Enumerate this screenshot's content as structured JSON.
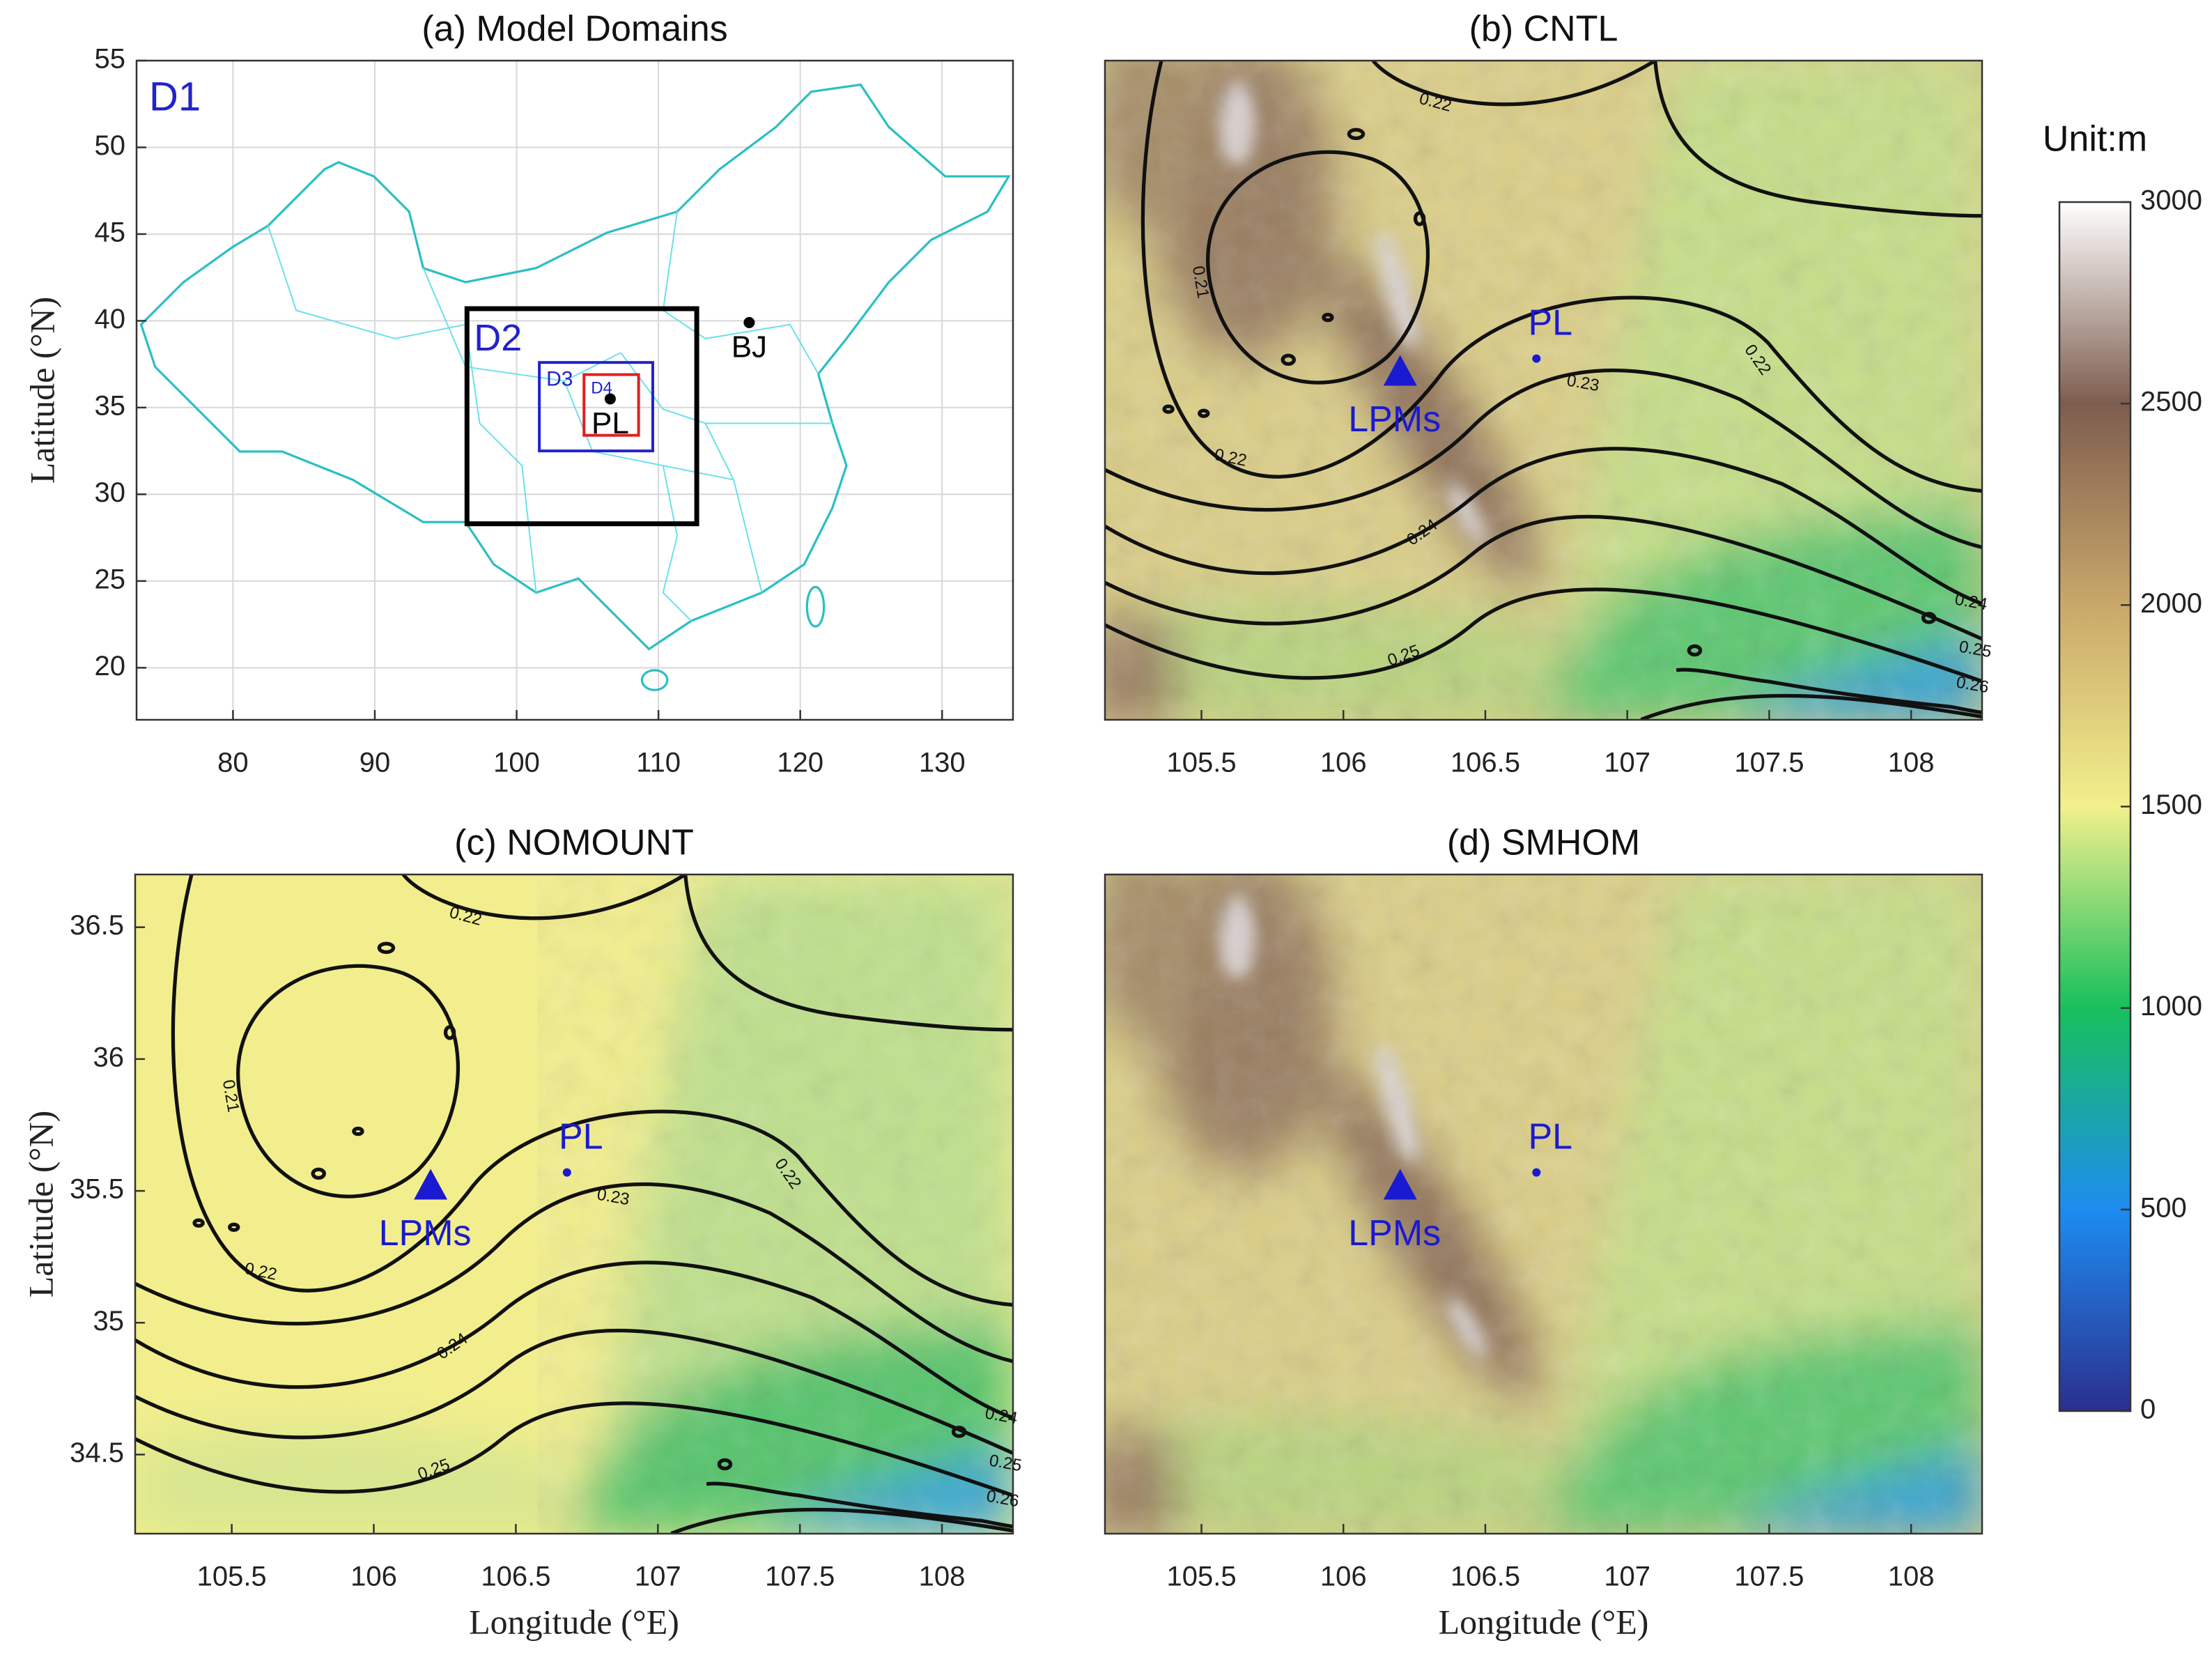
{
  "panels": [
    {
      "title": "(a) Model Domains",
      "ylabel": "Latitude (°N)",
      "xlim": [
        73.2,
        135
      ],
      "ylim": [
        17,
        55
      ],
      "xticks": [
        80,
        90,
        100,
        110,
        120,
        130
      ],
      "yticks": [
        20,
        25,
        30,
        35,
        40,
        45,
        50,
        55
      ],
      "grid": true,
      "domain_label": "D1",
      "domains": [
        {
          "label": "D2",
          "lon": [
            96.5,
            112.7
          ],
          "lat": [
            28.3,
            40.7
          ],
          "color": "#000000"
        },
        {
          "label": "D3",
          "lon": [
            101.6,
            109.6
          ],
          "lat": [
            32.5,
            37.6
          ],
          "color": "#2222cc"
        },
        {
          "label": "D4",
          "lon": [
            104.75,
            108.6
          ],
          "lat": [
            33.4,
            36.9
          ],
          "color": "#e02020"
        }
      ],
      "points": [
        {
          "label": "BJ",
          "lon": 116.4,
          "lat": 39.9,
          "marker": "dot",
          "color": "#000000"
        },
        {
          "label": "PL",
          "lon": 106.6,
          "lat": 35.5,
          "marker": "dot",
          "color": "#000000"
        }
      ]
    },
    {
      "title": "(b) CNTL",
      "terrain": "full",
      "xlim": [
        105.16,
        108.25
      ],
      "ylim": [
        34.2,
        36.7
      ],
      "xticks": [
        105.5,
        106,
        106.5,
        107,
        107.5,
        108
      ],
      "points": [
        {
          "label": "PL",
          "lon": 106.68,
          "lat": 35.57,
          "marker": "dot",
          "color": "#1a1ad0"
        },
        {
          "label": "LPMs",
          "lon": 106.2,
          "lat": 35.52,
          "marker": "triangle",
          "color": "#1a1ad0"
        }
      ],
      "contour_labels": [
        0.22,
        0.21,
        0.22,
        0.23,
        0.22,
        0.24,
        0.25,
        0.24,
        0.25,
        0.26
      ]
    },
    {
      "title": "(c) NOMOUNT",
      "terrain": "flat",
      "xlabel": "Longitude (°E)",
      "ylabel": "Latitude (°N)",
      "xlim": [
        105.16,
        108.25
      ],
      "ylim": [
        34.2,
        36.7
      ],
      "xticks": [
        105.5,
        106,
        106.5,
        107,
        107.5,
        108
      ],
      "yticks": [
        34.5,
        35,
        35.5,
        36,
        36.5
      ],
      "points": [
        {
          "label": "PL",
          "lon": 106.68,
          "lat": 35.57,
          "marker": "dot",
          "color": "#1a1ad0"
        },
        {
          "label": "LPMs",
          "lon": 106.2,
          "lat": 35.52,
          "marker": "triangle",
          "color": "#1a1ad0"
        }
      ],
      "contour_labels": [
        0.22,
        0.21,
        0.22,
        0.23,
        0.22,
        0.24,
        0.25,
        0.24,
        0.25,
        0.26
      ]
    },
    {
      "title": "(d) SMHOM",
      "terrain": "full",
      "xlabel": "Longitude (°E)",
      "xlim": [
        105.16,
        108.25
      ],
      "ylim": [
        34.2,
        36.7
      ],
      "xticks": [
        105.5,
        106,
        106.5,
        107,
        107.5,
        108
      ],
      "points": [
        {
          "label": "PL",
          "lon": 106.68,
          "lat": 35.57,
          "marker": "dot",
          "color": "#1a1ad0"
        },
        {
          "label": "LPMs",
          "lon": 106.2,
          "lat": 35.52,
          "marker": "triangle",
          "color": "#1a1ad0"
        }
      ]
    }
  ],
  "colorbar": {
    "title": "Unit:m",
    "lim": [
      0,
      3000
    ],
    "ticks": [
      0,
      500,
      1000,
      1500,
      2000,
      2500,
      3000
    ],
    "colors": [
      "#2b2f8f",
      "#1e8cf0",
      "#17c05c",
      "#f2f08c",
      "#c9a86a",
      "#7e5d4f",
      "#ffffff"
    ]
  }
}
